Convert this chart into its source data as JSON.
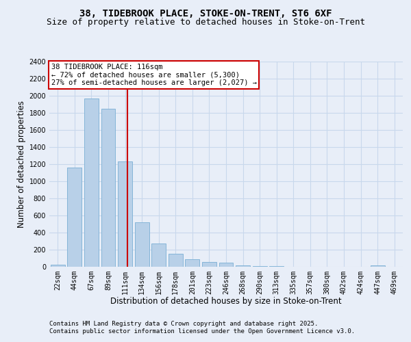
{
  "title_line1": "38, TIDEBROOK PLACE, STOKE-ON-TRENT, ST6 6XF",
  "title_line2": "Size of property relative to detached houses in Stoke-on-Trent",
  "xlabel": "Distribution of detached houses by size in Stoke-on-Trent",
  "ylabel": "Number of detached properties",
  "categories": [
    "22sqm",
    "44sqm",
    "67sqm",
    "89sqm",
    "111sqm",
    "134sqm",
    "156sqm",
    "178sqm",
    "201sqm",
    "223sqm",
    "246sqm",
    "268sqm",
    "290sqm",
    "313sqm",
    "335sqm",
    "357sqm",
    "380sqm",
    "402sqm",
    "424sqm",
    "447sqm",
    "469sqm"
  ],
  "values": [
    25,
    1160,
    1970,
    1850,
    1230,
    520,
    275,
    155,
    90,
    55,
    45,
    20,
    5,
    10,
    2,
    2,
    2,
    2,
    2,
    15,
    2
  ],
  "bar_color": "#b8d0e8",
  "bar_edge_color": "#7aafd4",
  "grid_color": "#c8d8ec",
  "bg_color": "#e8eef8",
  "annotation_text": "38 TIDEBROOK PLACE: 116sqm\n← 72% of detached houses are smaller (5,300)\n27% of semi-detached houses are larger (2,027) →",
  "annotation_box_color": "#ffffff",
  "annotation_box_edge": "#cc0000",
  "red_line_color": "#cc0000",
  "red_line_x": 4.15,
  "ylim": [
    0,
    2400
  ],
  "yticks": [
    0,
    200,
    400,
    600,
    800,
    1000,
    1200,
    1400,
    1600,
    1800,
    2000,
    2200,
    2400
  ],
  "footer_line1": "Contains HM Land Registry data © Crown copyright and database right 2025.",
  "footer_line2": "Contains public sector information licensed under the Open Government Licence v3.0.",
  "title_fontsize": 10,
  "subtitle_fontsize": 9,
  "axis_label_fontsize": 8.5,
  "tick_fontsize": 7,
  "footer_fontsize": 6.5,
  "annotation_fontsize": 7.5
}
